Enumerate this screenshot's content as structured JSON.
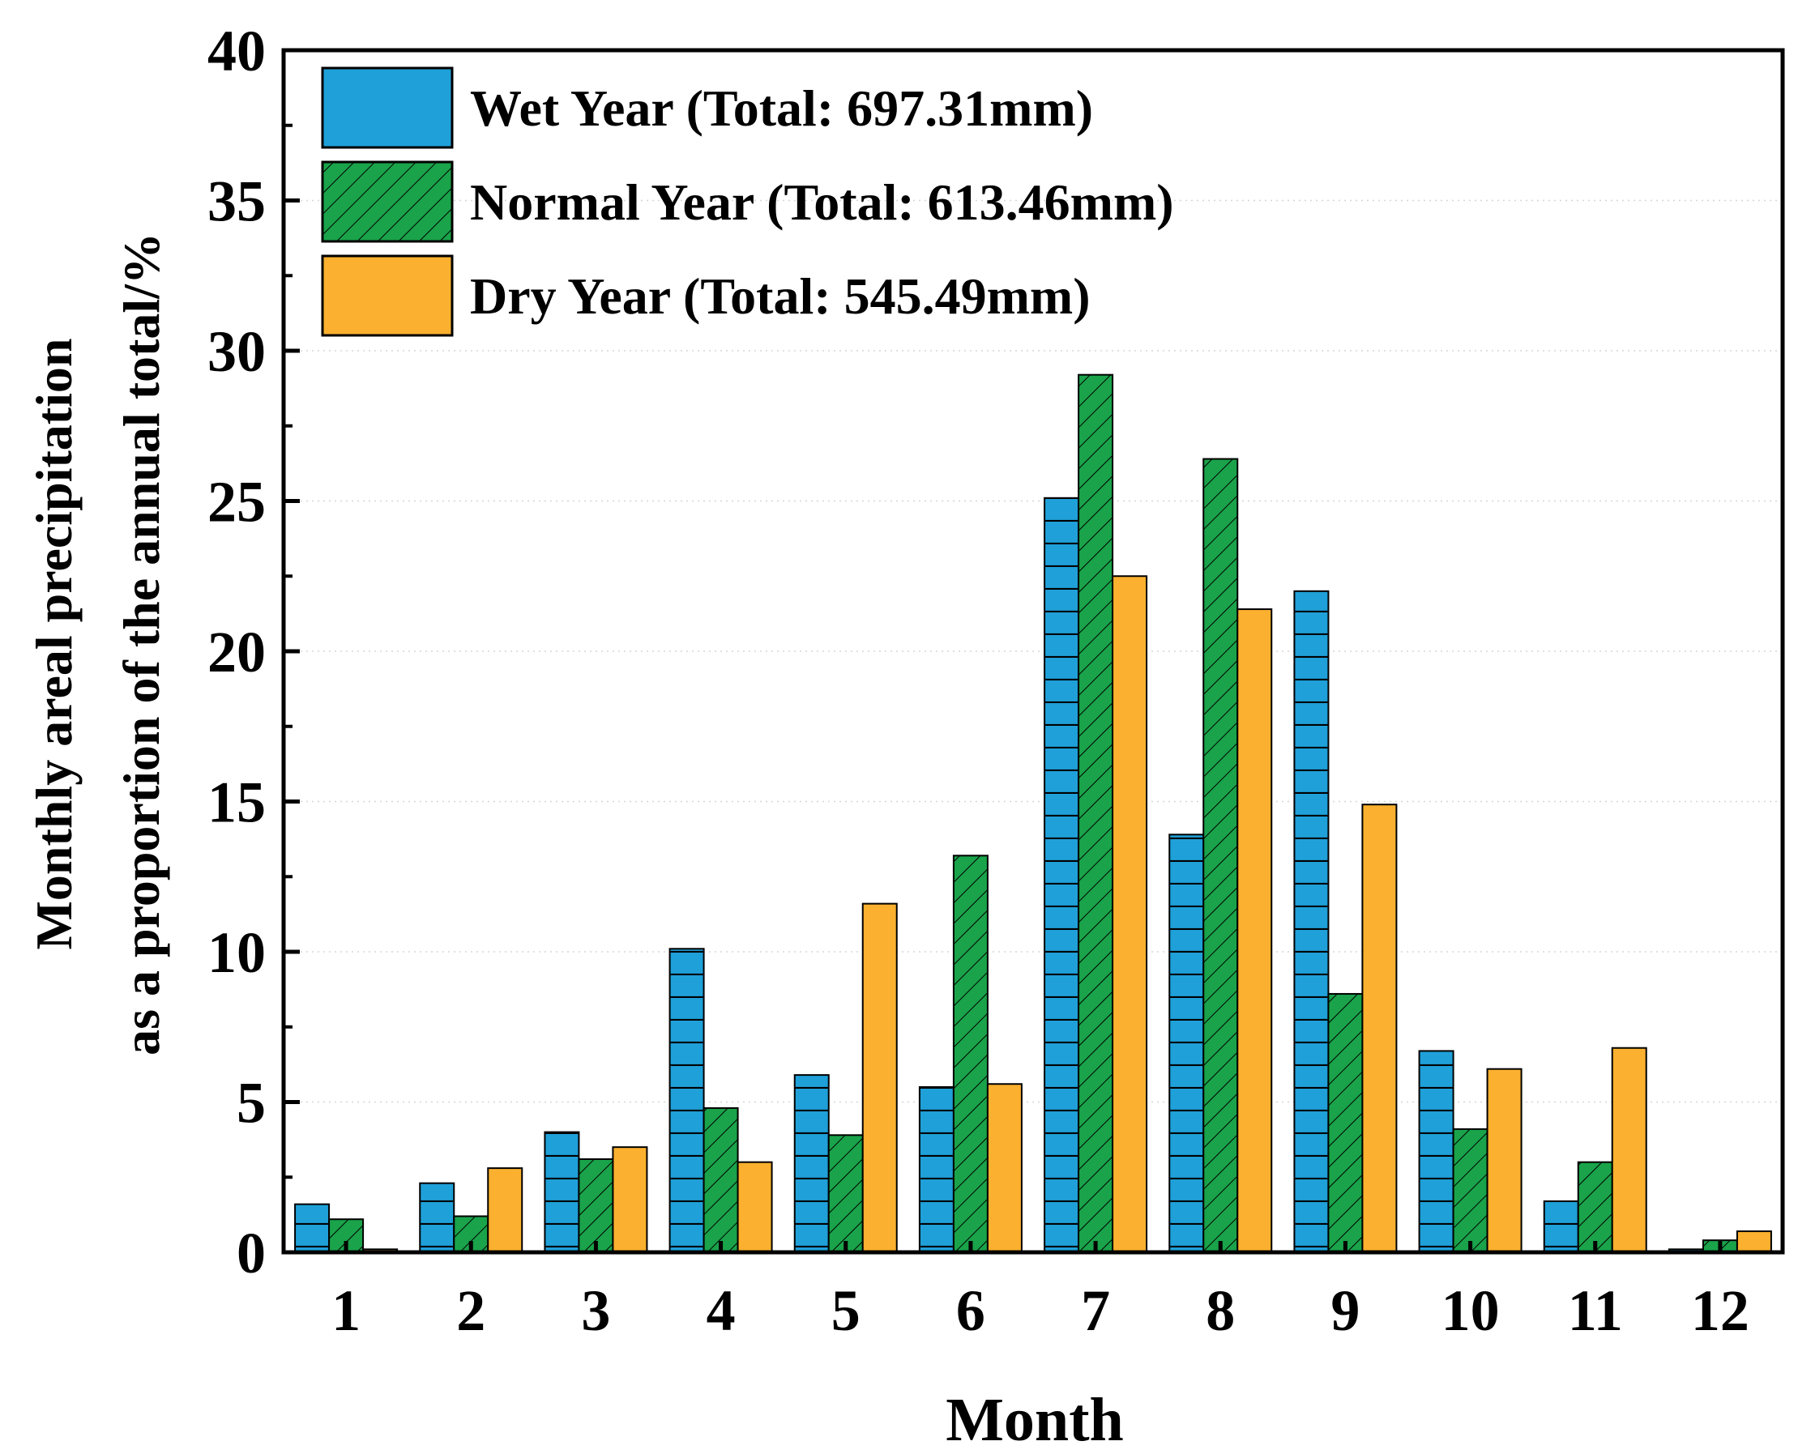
{
  "chart_data": {
    "type": "bar",
    "xlabel": "Month",
    "ylabel_line1": "Monthly areal precipitation",
    "ylabel_line2": "as a proportion of the annual total/%",
    "ylim": [
      0,
      40
    ],
    "yticks": [
      "0",
      "5",
      "10",
      "15",
      "20",
      "25",
      "30",
      "35",
      "40"
    ],
    "categories": [
      "1",
      "2",
      "3",
      "4",
      "5",
      "6",
      "7",
      "8",
      "9",
      "10",
      "11",
      "12"
    ],
    "legend_position": "top-left",
    "series": [
      {
        "name": "Wet Year (Total: 697.31mm)",
        "color": "#1fa0d8",
        "pattern": "horizontal-lines",
        "values": [
          1.6,
          2.3,
          4.0,
          10.1,
          5.9,
          5.5,
          25.1,
          13.9,
          22.0,
          6.7,
          1.7,
          0.1
        ]
      },
      {
        "name": "Normal Year (Total: 613.46mm)",
        "color": "#1aa34a",
        "pattern": "diagonal-hatch",
        "values": [
          1.1,
          1.2,
          3.1,
          4.8,
          3.9,
          13.2,
          29.2,
          26.4,
          8.6,
          4.1,
          3.0,
          0.4
        ]
      },
      {
        "name": "Dry Year (Total: 545.49mm)",
        "color": "#fbb12f",
        "pattern": "solid",
        "values": [
          0.1,
          2.8,
          3.5,
          3.0,
          11.6,
          5.6,
          22.5,
          21.4,
          14.9,
          6.1,
          6.8,
          0.7
        ]
      }
    ]
  }
}
